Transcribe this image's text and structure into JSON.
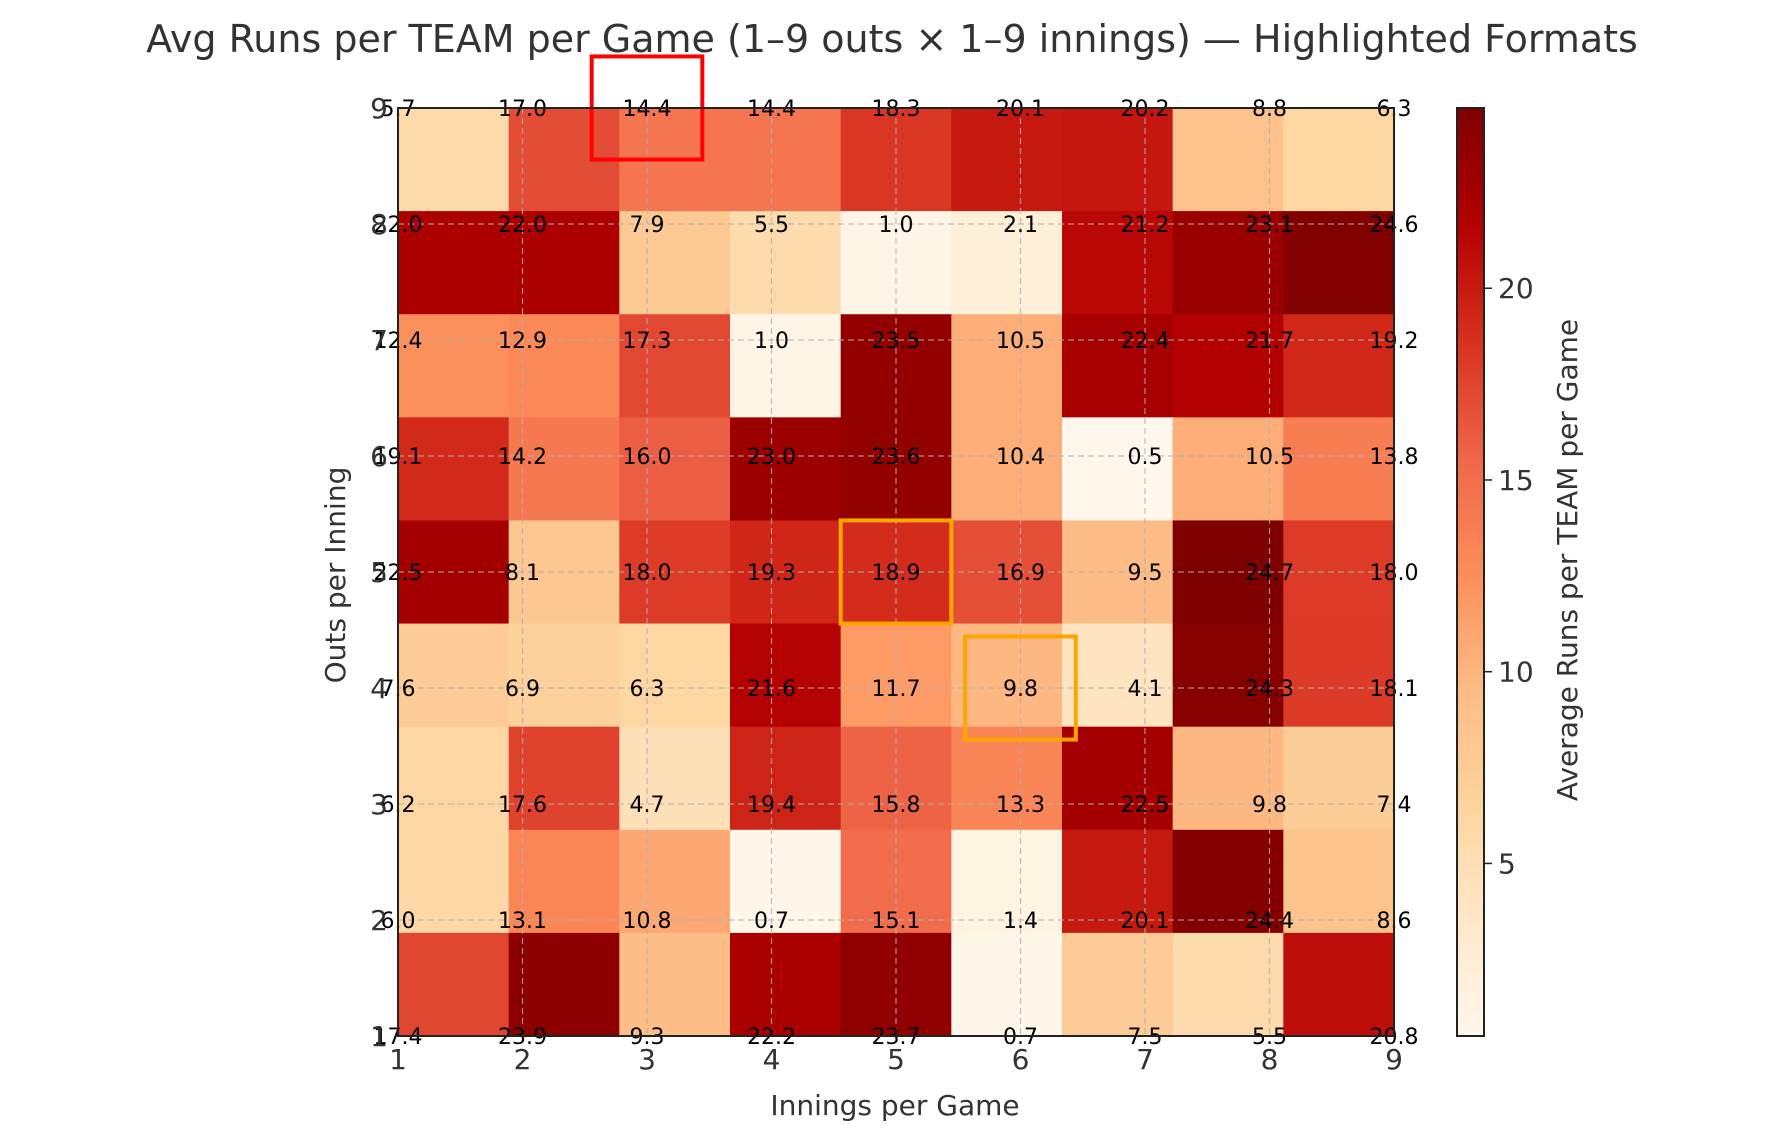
{
  "chart_data": {
    "type": "heatmap",
    "title": "Avg Runs per TEAM per Game (1–9 outs × 1–9 innings) — Highlighted Formats",
    "xlabel": "Innings per Game",
    "ylabel": "Outs per Inning",
    "x_ticks": [
      "1",
      "2",
      "3",
      "4",
      "5",
      "6",
      "7",
      "8",
      "9"
    ],
    "y_ticks": [
      "1",
      "2",
      "3",
      "4",
      "5",
      "6",
      "7",
      "8",
      "9"
    ],
    "colorbar": {
      "label": "Average Runs per TEAM per Game",
      "ticks": [
        5,
        10,
        15,
        20
      ],
      "range": [
        0.5,
        24.7
      ],
      "colormap": "OrRd"
    },
    "rows": [
      {
        "outs": 9,
        "values": [
          5.7,
          17.0,
          14.4,
          14.4,
          18.3,
          20.1,
          20.2,
          8.8,
          6.3
        ]
      },
      {
        "outs": 8,
        "values": [
          22.0,
          22.0,
          7.9,
          5.5,
          1.0,
          2.1,
          21.2,
          23.1,
          24.6
        ]
      },
      {
        "outs": 7,
        "values": [
          12.4,
          12.9,
          17.3,
          1.0,
          23.5,
          10.5,
          22.4,
          21.7,
          19.2
        ]
      },
      {
        "outs": 6,
        "values": [
          19.1,
          14.2,
          16.0,
          23.0,
          23.6,
          10.4,
          0.5,
          10.5,
          13.8
        ]
      },
      {
        "outs": 5,
        "values": [
          22.5,
          8.1,
          18.0,
          19.3,
          18.9,
          16.9,
          9.5,
          24.7,
          18.0
        ]
      },
      {
        "outs": 4,
        "values": [
          7.6,
          6.9,
          6.3,
          21.6,
          11.7,
          9.8,
          4.1,
          24.3,
          18.1
        ]
      },
      {
        "outs": 3,
        "values": [
          6.2,
          17.6,
          4.7,
          19.4,
          15.8,
          13.3,
          22.5,
          9.8,
          7.4
        ]
      },
      {
        "outs": 2,
        "values": [
          6.0,
          13.1,
          10.8,
          0.7,
          15.1,
          1.4,
          20.1,
          24.4,
          8.6
        ]
      },
      {
        "outs": 1,
        "values": [
          17.4,
          23.9,
          9.3,
          22.2,
          23.7,
          0.7,
          7.5,
          5.5,
          20.8
        ]
      }
    ],
    "highlights": [
      {
        "innings": 3,
        "outs": 9,
        "color": "#ff0000"
      },
      {
        "innings": 5,
        "outs": 5,
        "color": "#ffa500"
      },
      {
        "innings": 6,
        "outs": 4,
        "color": "#ffa500"
      }
    ]
  }
}
